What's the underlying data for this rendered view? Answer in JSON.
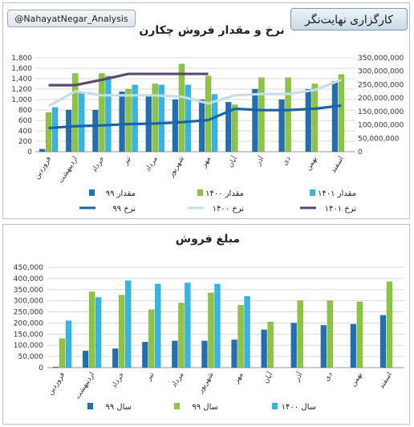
{
  "handle": "@NahayatNegar_Analysis",
  "brand": "کارگزاری نهایت‌نگر",
  "colors": {
    "s99": "#1f6fb2",
    "s1400": "#8cc63f",
    "s1401": "#33b5e5",
    "r99": "#1c64a8",
    "r1400": "#c7dde6",
    "r1401": "#5b4a6e"
  },
  "chart_data": [
    {
      "type": "bar",
      "title": "نرخ و مقدار فروش چکارن",
      "categories": [
        "فروردین",
        "اردیبهشت",
        "خرداد",
        "تیر",
        "مرداد",
        "شهریور",
        "مهر",
        "آبان",
        "آذر",
        "دی",
        "بهمن",
        "اسفند"
      ],
      "y_left": {
        "min": 0,
        "max": 1800,
        "step": 200,
        "ticks": [
          "0",
          "200",
          "400",
          "600",
          "800",
          "1,000",
          "1,200",
          "1,400",
          "1,600",
          "1,800"
        ]
      },
      "y_right": {
        "min": 0,
        "max": 350000000,
        "step": 50000000,
        "ticks": [
          "0",
          "50,000,000",
          "100,000,000",
          "150,000,000",
          "200,000,000",
          "250,000,000",
          "300,000,000",
          "350,000,000"
        ]
      },
      "series": [
        {
          "name": "مقدار ۹۹",
          "kind": "bar",
          "axis": "left",
          "values": [
            50,
            800,
            800,
            1150,
            1100,
            1000,
            1000,
            950,
            1200,
            1000,
            1200,
            1350
          ]
        },
        {
          "name": "مقدار ۱۴۰۰",
          "kind": "bar",
          "axis": "left",
          "values": [
            750,
            1500,
            1500,
            1200,
            1300,
            1680,
            1450,
            900,
            1420,
            1420,
            1300,
            1480
          ]
        },
        {
          "name": "مقدار ۱۴۰۱",
          "kind": "bar",
          "axis": "left",
          "values": [
            850,
            1150,
            1450,
            1280,
            1280,
            1280,
            1100,
            null,
            null,
            null,
            null,
            null
          ]
        },
        {
          "name": "نرخ ۹۹",
          "kind": "line",
          "axis": "right",
          "values": [
            88000000,
            95000000,
            98000000,
            103000000,
            105000000,
            110000000,
            118000000,
            160000000,
            155000000,
            155000000,
            160000000,
            172000000
          ]
        },
        {
          "name": "نرخ ۱۴۰۰",
          "kind": "line",
          "axis": "right",
          "values": [
            170000000,
            225000000,
            210000000,
            210000000,
            210000000,
            205000000,
            180000000,
            210000000,
            215000000,
            215000000,
            230000000,
            268000000
          ]
        },
        {
          "name": "نرخ ۱۴۰۱",
          "kind": "line",
          "axis": "right",
          "values": [
            248000000,
            248000000,
            268000000,
            290000000,
            290000000,
            290000000,
            290000000,
            null,
            null,
            null,
            null,
            null
          ]
        }
      ],
      "legend_position": "bottom"
    },
    {
      "type": "bar",
      "title": "مبلغ فروش",
      "categories": [
        "فروردین",
        "اردیبهشت",
        "خرداد",
        "تیر",
        "مرداد",
        "شهریور",
        "مهر",
        "آبان",
        "آذر",
        "دی",
        "بهمن",
        "اسفند"
      ],
      "y_left": {
        "min": 0,
        "max": 450000,
        "step": 50000,
        "ticks": [
          "0",
          "50,000",
          "100,000",
          "150,000",
          "200,000",
          "250,000",
          "300,000",
          "350,000",
          "400,000",
          "450,000"
        ]
      },
      "series": [
        {
          "name": "سال ۹۹",
          "kind": "bar",
          "values": [
            3000,
            75000,
            85000,
            115000,
            120000,
            120000,
            125000,
            170000,
            200000,
            190000,
            195000,
            235000
          ]
        },
        {
          "name": "سال ۹۹",
          "kind": "bar",
          "values": [
            130000,
            340000,
            325000,
            260000,
            290000,
            335000,
            280000,
            205000,
            300000,
            300000,
            295000,
            385000
          ]
        },
        {
          "name": "سال ۱۴۰۰",
          "kind": "bar",
          "values": [
            210000,
            315000,
            390000,
            375000,
            380000,
            375000,
            320000,
            null,
            null,
            null,
            null,
            null
          ]
        }
      ],
      "legend_position": "bottom"
    }
  ]
}
